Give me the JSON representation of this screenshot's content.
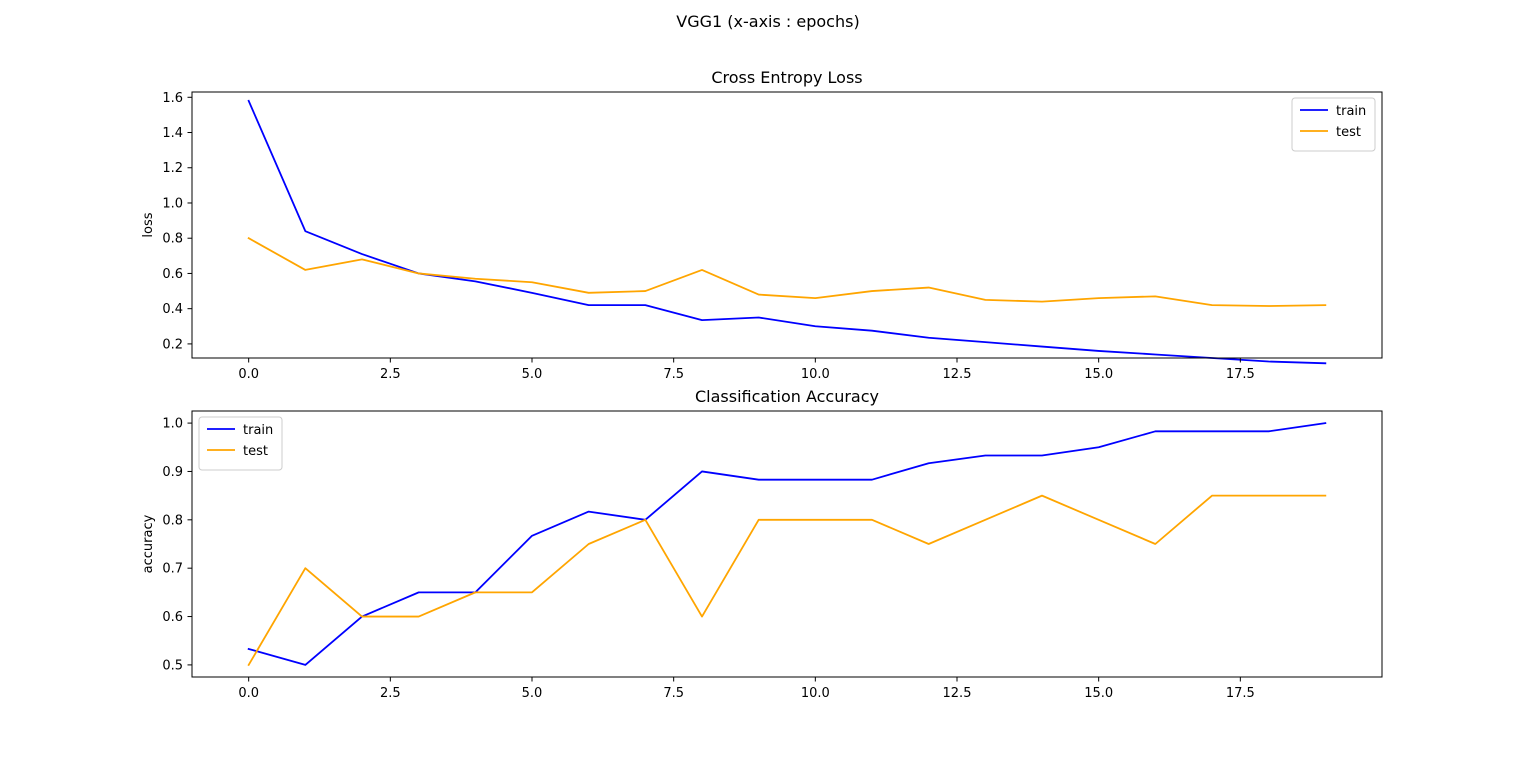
{
  "figure": {
    "title": "VGG1 (x-axis : epochs)"
  },
  "chart_data": [
    {
      "type": "line",
      "title": "Cross Entropy Loss",
      "xlabel": "",
      "ylabel": "loss",
      "xlim": [
        -1,
        20
      ],
      "ylim": [
        0.12,
        1.63
      ],
      "xticks": [
        "0.0",
        "2.5",
        "5.0",
        "7.5",
        "10.0",
        "12.5",
        "15.0",
        "17.5"
      ],
      "xtick_values": [
        0,
        2.5,
        5,
        7.5,
        10,
        12.5,
        15,
        17.5
      ],
      "yticks": [
        "0.2",
        "0.4",
        "0.6",
        "0.8",
        "1.0",
        "1.2",
        "1.4",
        "1.6"
      ],
      "ytick_values": [
        0.2,
        0.4,
        0.6,
        0.8,
        1.0,
        1.2,
        1.4,
        1.6
      ],
      "legend_position": "upper right",
      "grid": false,
      "x": [
        0,
        1,
        2,
        3,
        4,
        5,
        6,
        7,
        8,
        9,
        10,
        11,
        12,
        13,
        14,
        15,
        16,
        17,
        18,
        19
      ],
      "series": [
        {
          "name": "train",
          "color": "#0000ff",
          "values": [
            1.58,
            0.84,
            0.71,
            0.6,
            0.555,
            0.49,
            0.42,
            0.42,
            0.335,
            0.35,
            0.3,
            0.275,
            0.235,
            0.21,
            0.185,
            0.16,
            0.14,
            0.12,
            0.1,
            0.09
          ]
        },
        {
          "name": "test",
          "color": "#ffa500",
          "values": [
            0.8,
            0.62,
            0.68,
            0.6,
            0.57,
            0.55,
            0.49,
            0.5,
            0.62,
            0.48,
            0.46,
            0.5,
            0.52,
            0.45,
            0.44,
            0.46,
            0.47,
            0.42,
            0.415,
            0.42
          ]
        }
      ]
    },
    {
      "type": "line",
      "title": "Classification Accuracy",
      "xlabel": "",
      "ylabel": "accuracy",
      "xlim": [
        -1,
        20
      ],
      "ylim": [
        0.475,
        1.025
      ],
      "xticks": [
        "0.0",
        "2.5",
        "5.0",
        "7.5",
        "10.0",
        "12.5",
        "15.0",
        "17.5"
      ],
      "xtick_values": [
        0,
        2.5,
        5,
        7.5,
        10,
        12.5,
        15,
        17.5
      ],
      "yticks": [
        "0.5",
        "0.6",
        "0.7",
        "0.8",
        "0.9",
        "1.0"
      ],
      "ytick_values": [
        0.5,
        0.6,
        0.7,
        0.8,
        0.9,
        1.0
      ],
      "legend_position": "upper left",
      "grid": false,
      "x": [
        0,
        1,
        2,
        3,
        4,
        5,
        6,
        7,
        8,
        9,
        10,
        11,
        12,
        13,
        14,
        15,
        16,
        17,
        18,
        19
      ],
      "series": [
        {
          "name": "train",
          "color": "#0000ff",
          "values": [
            0.533,
            0.5,
            0.6,
            0.65,
            0.65,
            0.767,
            0.817,
            0.8,
            0.9,
            0.883,
            0.883,
            0.883,
            0.917,
            0.933,
            0.933,
            0.95,
            0.983,
            0.983,
            0.983,
            1.0
          ]
        },
        {
          "name": "test",
          "color": "#ffa500",
          "values": [
            0.5,
            0.7,
            0.6,
            0.6,
            0.65,
            0.65,
            0.75,
            0.8,
            0.6,
            0.8,
            0.8,
            0.8,
            0.75,
            0.8,
            0.85,
            0.8,
            0.75,
            0.85,
            0.85,
            0.85
          ]
        }
      ]
    }
  ]
}
